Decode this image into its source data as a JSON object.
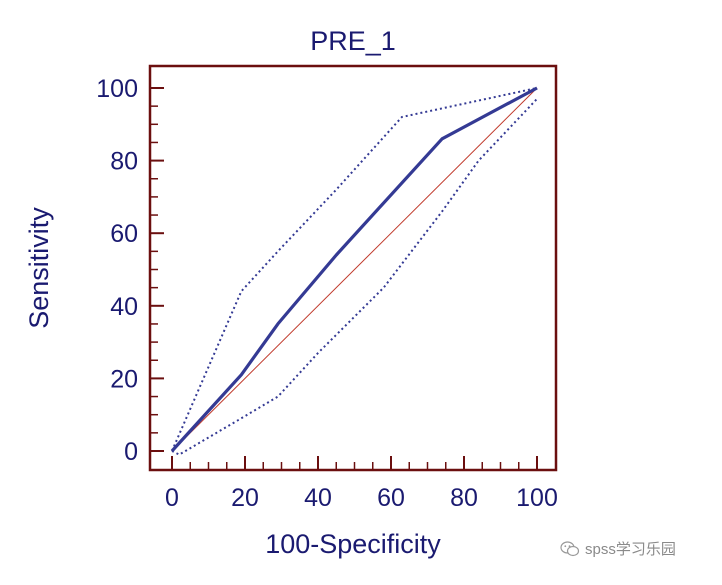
{
  "chart_data": {
    "type": "line",
    "title": "PRE_1",
    "xlabel": "100-Specificity",
    "ylabel": "Sensitivity",
    "xlim": [
      0,
      100
    ],
    "ylim": [
      0,
      100
    ],
    "x_ticks": [
      0,
      20,
      40,
      60,
      80,
      100
    ],
    "y_ticks": [
      0,
      20,
      40,
      60,
      80,
      100
    ],
    "grid": false,
    "legend": "none",
    "series": [
      {
        "role": "roc-curve",
        "style": "solid",
        "color": "#343a94",
        "points": [
          [
            0,
            0
          ],
          [
            19,
            21
          ],
          [
            29,
            35
          ],
          [
            45,
            54
          ],
          [
            74,
            86
          ],
          [
            100,
            100
          ]
        ]
      },
      {
        "role": "upper-confidence-bound",
        "style": "dotted",
        "color": "#343a94",
        "points": [
          [
            0,
            0
          ],
          [
            19,
            44
          ],
          [
            29,
            55
          ],
          [
            45,
            72
          ],
          [
            63,
            92
          ],
          [
            100,
            100
          ]
        ]
      },
      {
        "role": "lower-confidence-bound",
        "style": "dotted",
        "color": "#343a94",
        "points": [
          [
            0,
            0
          ],
          [
            2,
            -1
          ],
          [
            19,
            9
          ],
          [
            29,
            15
          ],
          [
            40,
            27
          ],
          [
            58,
            45
          ],
          [
            74,
            66
          ],
          [
            84,
            80
          ],
          [
            100,
            97
          ]
        ]
      },
      {
        "role": "reference-diagonal",
        "style": "solid",
        "color": "#c0392b",
        "points": [
          [
            0,
            0
          ],
          [
            100,
            100
          ]
        ]
      }
    ]
  },
  "watermark": {
    "text": "spss学习乐园",
    "icon": "wechat-icon"
  },
  "colors": {
    "frame": "#6b0f0f",
    "text": "#1a1a70"
  }
}
